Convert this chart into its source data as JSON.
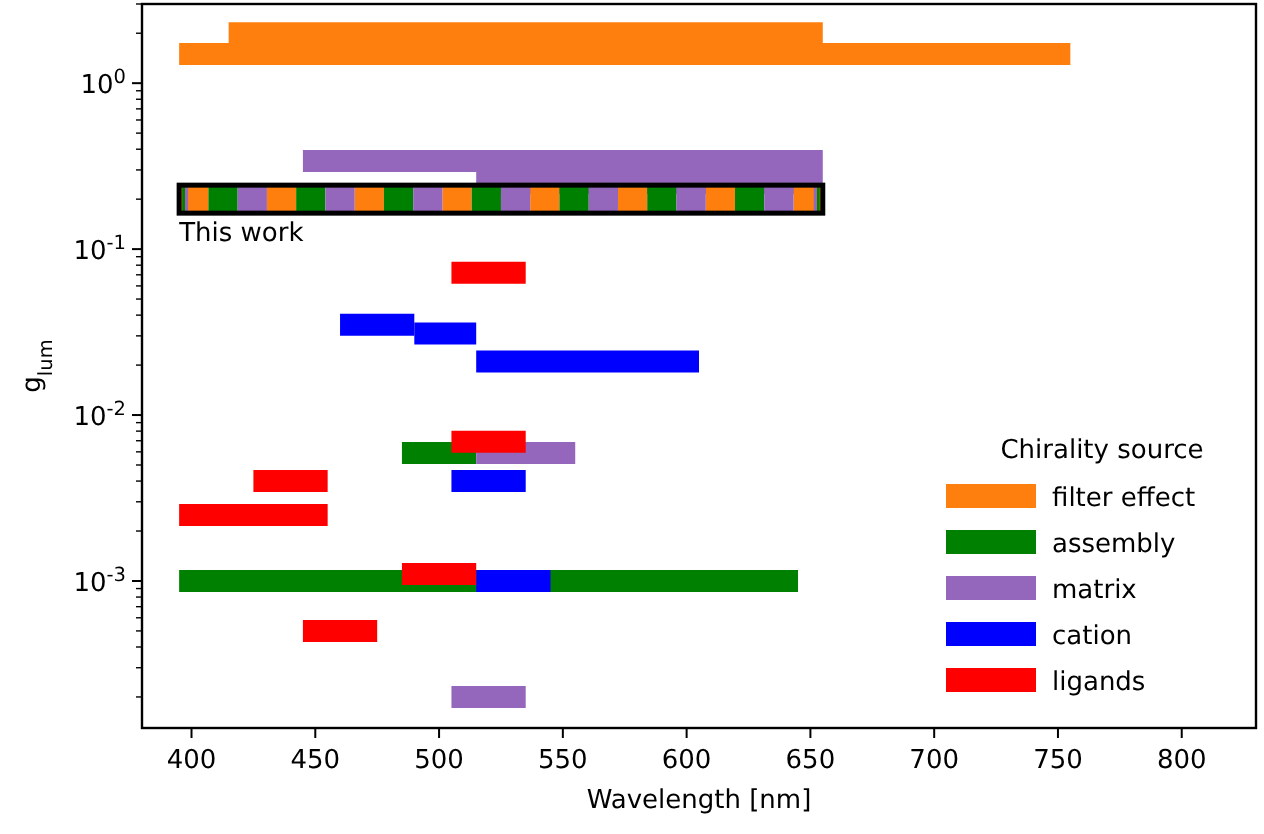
{
  "chart_data": {
    "type": "line",
    "xlabel": "Wavelength [nm]",
    "ylabel": "g$_{lum}$",
    "legend_title": "Chirality source",
    "legend": "bottom right",
    "log": "y",
    "marker": "none",
    "line_style": "solid",
    "xlim": [
      380,
      830
    ],
    "xticks": [
      400,
      450,
      500,
      550,
      600,
      650,
      700,
      750,
      800
    ],
    "ylim": [
      0.00013,
      3
    ],
    "yticks": [
      {
        "value": 0.0002,
        "label": null
      },
      {
        "value": 0.0003,
        "label": null
      },
      {
        "value": 0.0004,
        "label": null
      },
      {
        "value": 0.0005,
        "label": null
      },
      {
        "value": 0.0006,
        "label": null
      },
      {
        "value": 0.0007,
        "label": null
      },
      {
        "value": 0.0008,
        "label": null
      },
      {
        "value": 0.0009,
        "label": null
      },
      {
        "value": 0.001,
        "label": "10$^{-3}$"
      },
      {
        "value": 0.002,
        "label": null
      },
      {
        "value": 0.003,
        "label": null
      },
      {
        "value": 0.004,
        "label": null
      },
      {
        "value": 0.005,
        "label": null
      },
      {
        "value": 0.006,
        "label": null
      },
      {
        "value": 0.007,
        "label": null
      },
      {
        "value": 0.008,
        "label": null
      },
      {
        "value": 0.009,
        "label": null
      },
      {
        "value": 0.01,
        "label": "10$^{-2}$"
      },
      {
        "value": 0.02,
        "label": null
      },
      {
        "value": 0.03,
        "label": null
      },
      {
        "value": 0.04,
        "label": null
      },
      {
        "value": 0.05,
        "label": null
      },
      {
        "value": 0.06,
        "label": null
      },
      {
        "value": 0.07,
        "label": null
      },
      {
        "value": 0.08,
        "label": null
      },
      {
        "value": 0.09,
        "label": null
      },
      {
        "value": 0.1,
        "label": "10$^{-1}$"
      },
      {
        "value": 0.2,
        "label": null
      },
      {
        "value": 0.3,
        "label": null
      },
      {
        "value": 0.4,
        "label": null
      },
      {
        "value": 0.5,
        "label": null
      },
      {
        "value": 0.6,
        "label": null
      },
      {
        "value": 0.7,
        "label": null
      },
      {
        "value": 0.8,
        "label": null
      },
      {
        "value": 0.9,
        "label": null
      },
      {
        "value": 1,
        "label": "10$^{0}$"
      },
      {
        "value": 2,
        "label": null
      },
      {
        "value": 3,
        "label": null
      }
    ],
    "series": [
      {
        "name": "filter effect",
        "color": "#ff7f0e",
        "x": [
          415,
          655
        ],
        "values": [
          2,
          2
        ]
      },
      {
        "color": "#ff7f0e",
        "x": [
          395,
          755
        ],
        "values": [
          1.5,
          1.5
        ]
      },
      {
        "name": "assembly",
        "color": "#008000",
        "x": [
          485,
          515
        ],
        "values": [
          0.0059,
          0.0059
        ]
      },
      {
        "color": "#008000",
        "x": [
          395,
          645
        ],
        "values": [
          0.001,
          0.001
        ]
      },
      {
        "name": "matrix",
        "color": "#9467bd",
        "x": [
          445,
          655
        ],
        "values": [
          0.34,
          0.34
        ]
      },
      {
        "color": "#9467bd",
        "x": [
          515,
          655
        ],
        "values": [
          0.25,
          0.25
        ]
      },
      {
        "color": "#9467bd",
        "x": [
          515,
          555
        ],
        "values": [
          0.0059,
          0.0059
        ]
      },
      {
        "color": "#9467bd",
        "x": [
          505,
          535
        ],
        "values": [
          0.0002,
          0.0002
        ]
      },
      {
        "name": "cation",
        "color": "#0000ff",
        "x": [
          460,
          490
        ],
        "values": [
          0.035,
          0.035
        ]
      },
      {
        "color": "#0000ff",
        "x": [
          490,
          515
        ],
        "values": [
          0.031,
          0.031
        ]
      },
      {
        "color": "#0000ff",
        "x": [
          515,
          605
        ],
        "values": [
          0.021,
          0.021
        ]
      },
      {
        "color": "#0000ff",
        "x": [
          505,
          535
        ],
        "values": [
          0.004,
          0.004
        ]
      },
      {
        "color": "#0000ff",
        "x": [
          515,
          545
        ],
        "values": [
          0.001,
          0.001
        ]
      },
      {
        "name": "ligands",
        "color": "#ff0000",
        "x": [
          505,
          535
        ],
        "values": [
          0.072,
          0.072
        ]
      },
      {
        "color": "#ff0000",
        "x": [
          505,
          535
        ],
        "values": [
          0.0069,
          0.0069
        ]
      },
      {
        "color": "#ff0000",
        "x": [
          425,
          455
        ],
        "values": [
          0.004,
          0.004
        ]
      },
      {
        "color": "#ff0000",
        "x": [
          395,
          455
        ],
        "values": [
          0.0025,
          0.0025
        ]
      },
      {
        "color": "#ff0000",
        "x": [
          485,
          515
        ],
        "values": [
          0.0011,
          0.0011
        ]
      },
      {
        "color": "#ff0000",
        "x": [
          445,
          475
        ],
        "values": [
          0.0005,
          0.0005
        ]
      },
      {
        "color": "#ff7f0e",
        "line_style": "dashed",
        "x": [
          395,
          655
        ],
        "values": [
          0.2,
          0.2
        ]
      },
      {
        "color": "#008000",
        "line_style": "dashed",
        "x": [
          395,
          655
        ],
        "values": [
          0.2,
          0.2
        ]
      },
      {
        "color": "#9467bd",
        "line_style": "dashed",
        "x": [
          395,
          655
        ],
        "values": [
          0.2,
          0.2
        ]
      }
    ],
    "annotations": [
      "This work"
    ]
  }
}
